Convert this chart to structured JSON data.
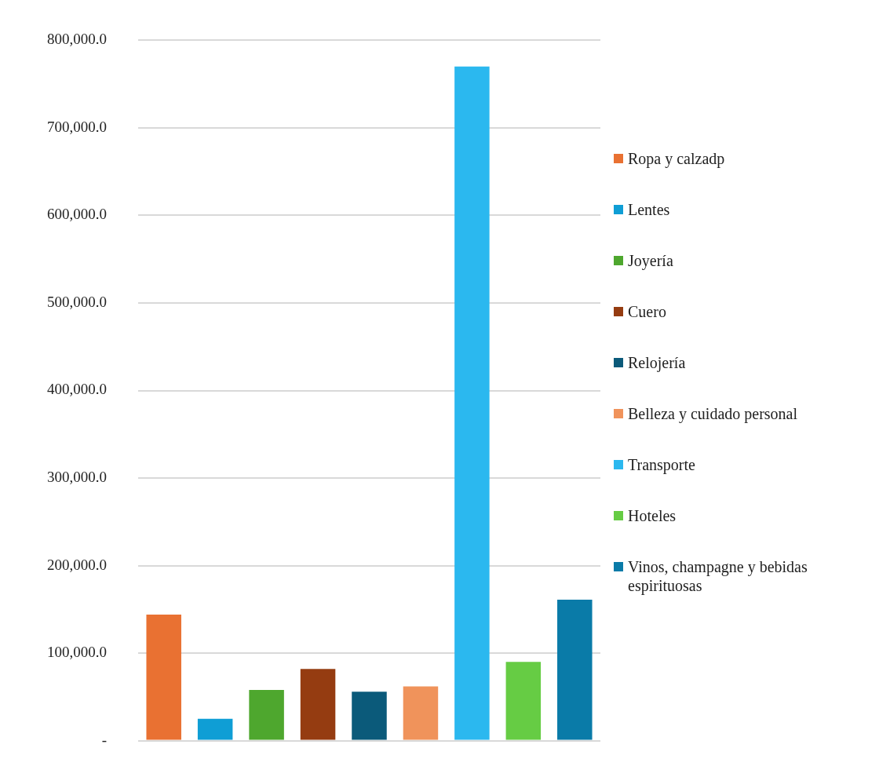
{
  "chart_data": {
    "type": "bar",
    "categories": [
      null,
      null,
      null,
      null,
      null,
      null,
      null,
      null,
      null
    ],
    "series": [
      {
        "name": "Ropa y calzadp",
        "color": "#e97132",
        "values": [
          144000,
          null,
          null,
          null,
          null,
          null,
          null,
          null,
          null
        ]
      },
      {
        "name": "Lentes",
        "color": "#0f9ed5",
        "values": [
          null,
          25000,
          null,
          null,
          null,
          null,
          null,
          null,
          null
        ]
      },
      {
        "name": "Joyería",
        "color": "#4ea72e",
        "values": [
          null,
          null,
          58000,
          null,
          null,
          null,
          null,
          null,
          null
        ]
      },
      {
        "name": "Cuero",
        "color": "#953c11",
        "values": [
          null,
          null,
          null,
          82000,
          null,
          null,
          null,
          null,
          null
        ]
      },
      {
        "name": "Relojería",
        "color": "#0b5a7a",
        "values": [
          null,
          null,
          null,
          null,
          56000,
          null,
          null,
          null,
          null
        ]
      },
      {
        "name": "Belleza y cuidado personal",
        "color": "#f0935b",
        "values": [
          null,
          null,
          null,
          null,
          null,
          62000,
          null,
          null,
          null
        ]
      },
      {
        "name": "Transporte",
        "color": "#2bb8ef",
        "values": [
          null,
          null,
          null,
          null,
          null,
          null,
          770000,
          null,
          null
        ]
      },
      {
        "name": "Hoteles",
        "color": "#66cc44",
        "values": [
          null,
          null,
          null,
          null,
          null,
          null,
          null,
          90000,
          null
        ]
      },
      {
        "name": "Vinos, champagne y bebidas espirituosas",
        "color": "#0a7ba8",
        "values": [
          null,
          null,
          null,
          null,
          null,
          null,
          null,
          null,
          161000
        ]
      }
    ],
    "ylim": [
      0,
      800000
    ],
    "yticks": [
      {
        "value": 0,
        "label": "-"
      },
      {
        "value": 100000,
        "label": "100,000.0"
      },
      {
        "value": 200000,
        "label": "200,000.0"
      },
      {
        "value": 300000,
        "label": "300,000.0"
      },
      {
        "value": 400000,
        "label": "400,000.0"
      },
      {
        "value": 500000,
        "label": "500,000.0"
      },
      {
        "value": 600000,
        "label": "600,000.0"
      },
      {
        "value": 700000,
        "label": "700,000.0"
      },
      {
        "value": 800000,
        "label": "800,000.0"
      }
    ],
    "grid": "y",
    "legend": "right",
    "tick_labels": "y"
  }
}
